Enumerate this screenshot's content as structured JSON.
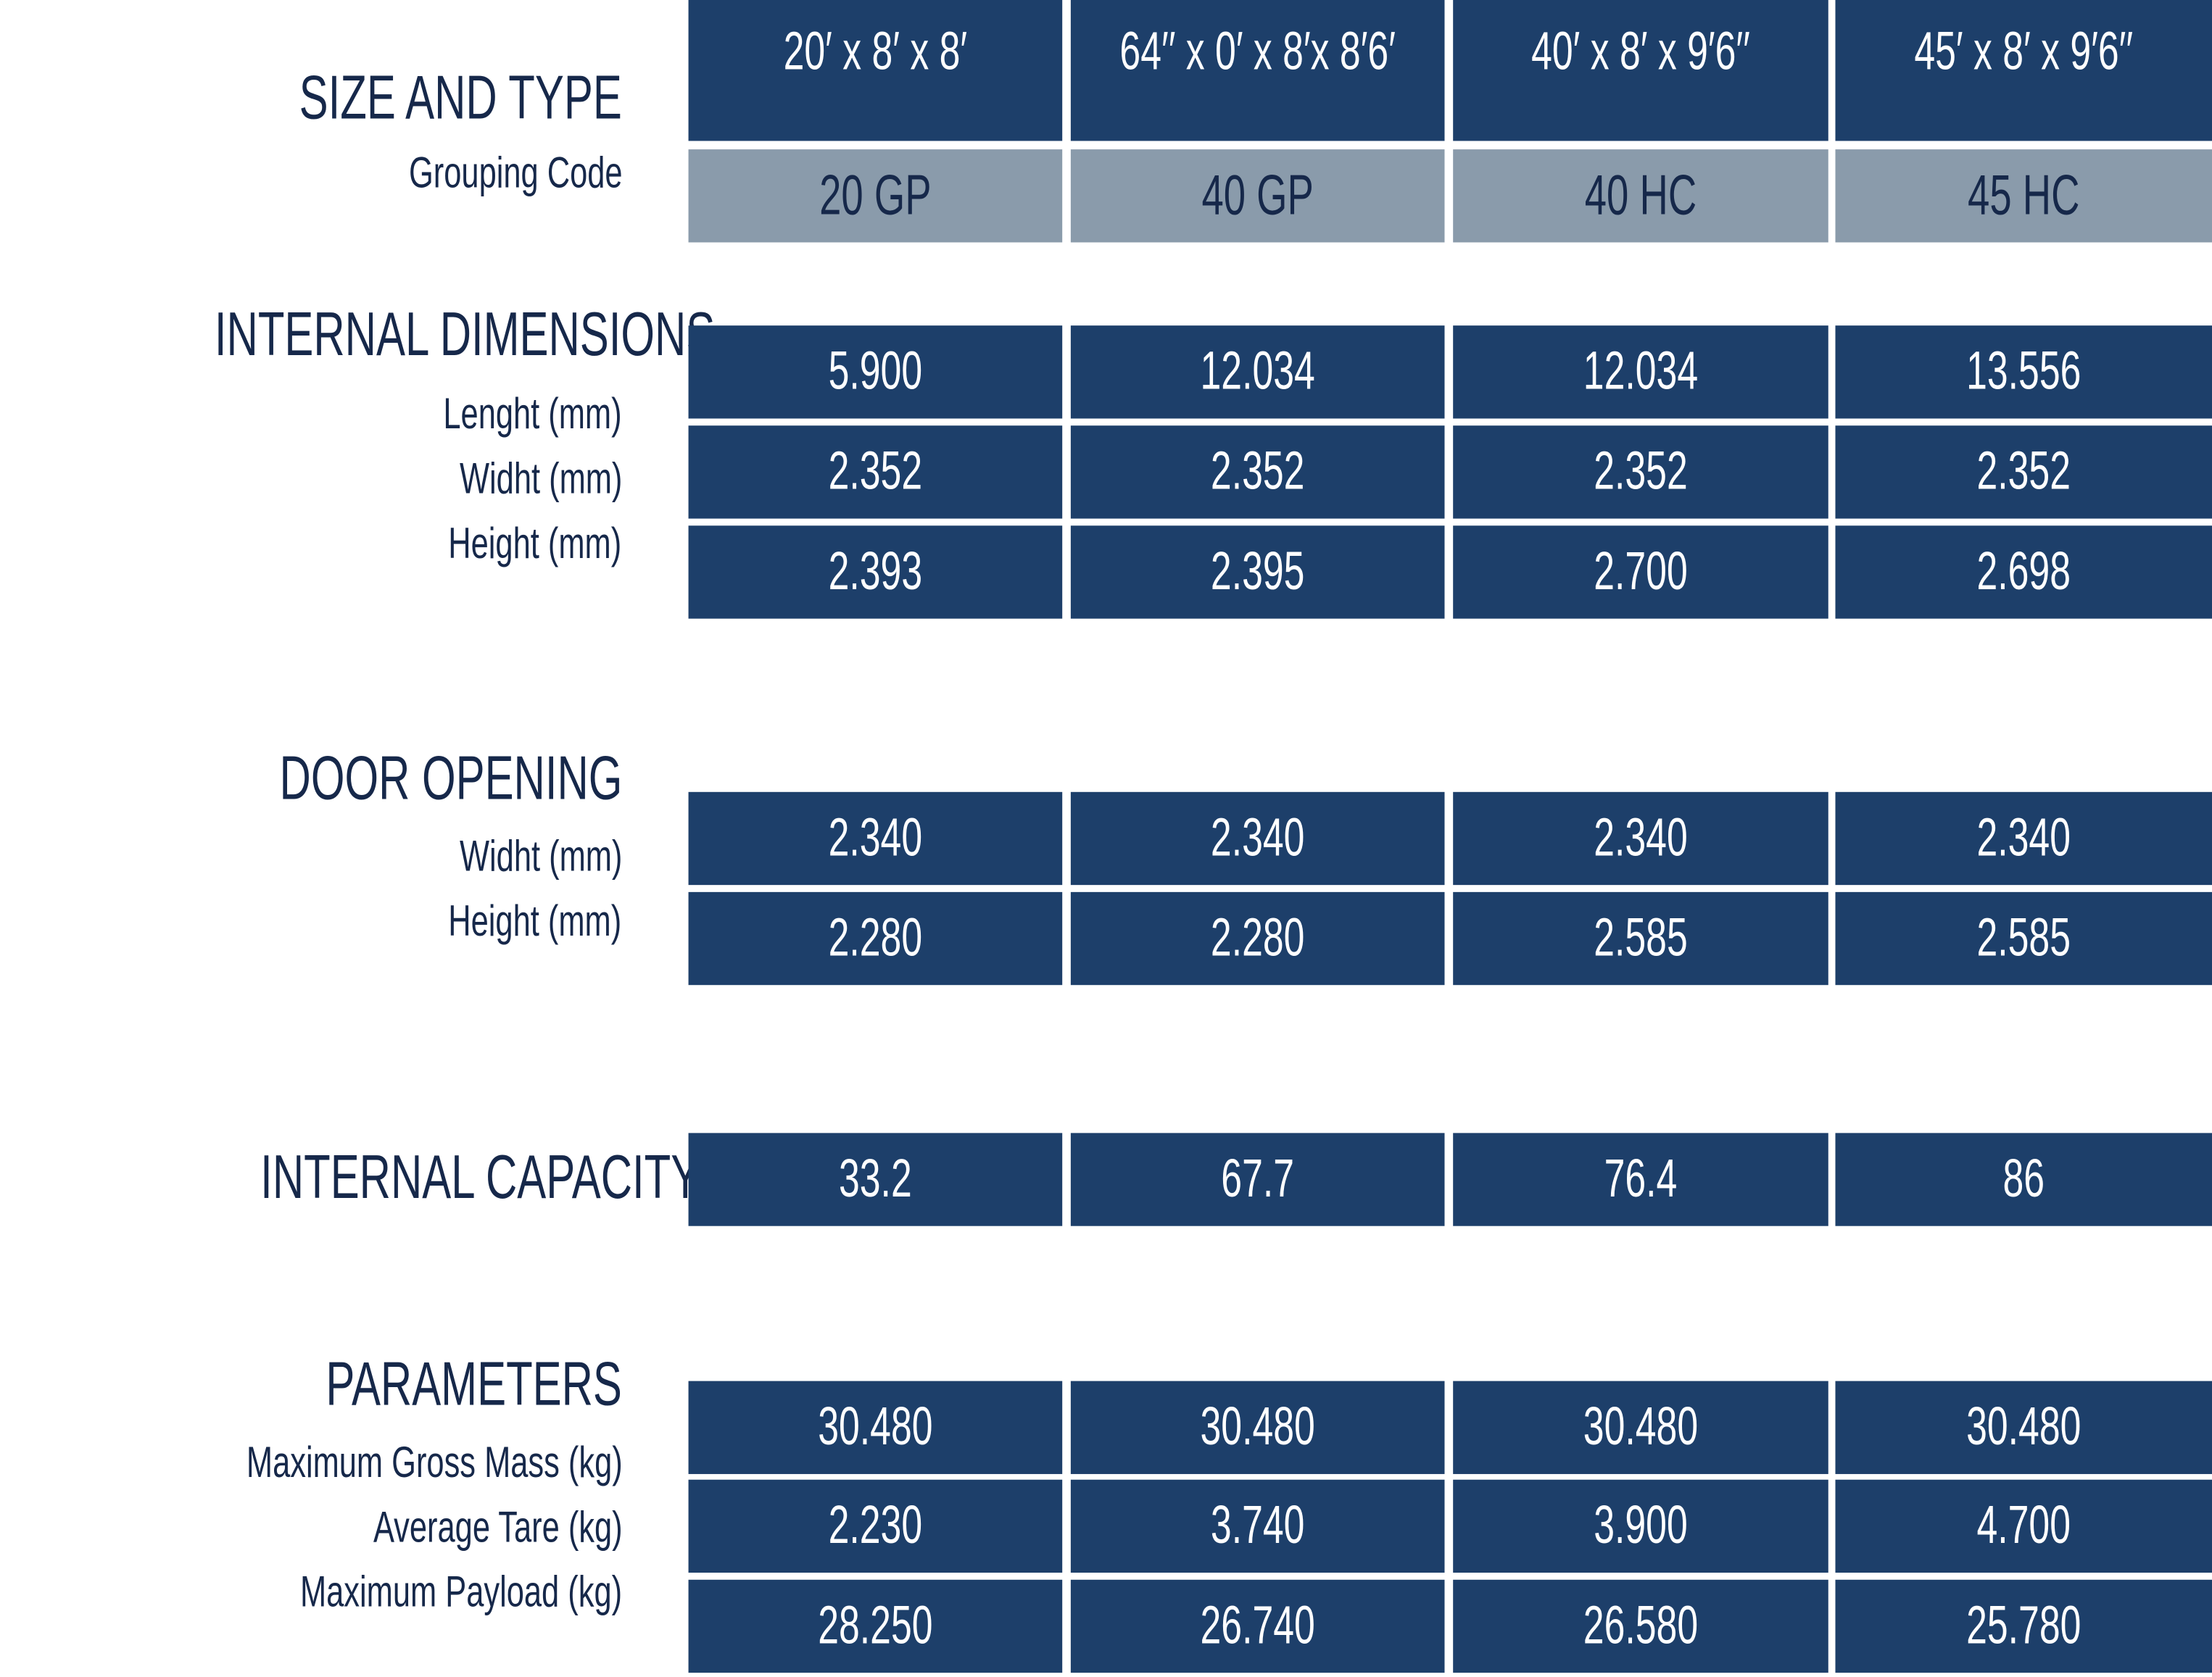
{
  "header": {
    "title": "SIZE AND TYPE",
    "subtitle": "Grouping Code",
    "sizes": [
      "20′ x 8′ x 8′",
      "64′′ x 0′ x 8′x 8′6′",
      "40′ x 8′ x 9′6′′",
      "45′ x 8′ x 9′6′′"
    ],
    "codes": [
      "20 GP",
      "40 GP",
      "40 HC",
      "45 HC"
    ]
  },
  "sections": [
    {
      "title": "INTERNAL DIMENSIONS",
      "labels": [
        "Lenght (mm)",
        "Widht (mm)",
        "Height (mm)"
      ],
      "rows": [
        [
          "5.900",
          "12.034",
          "12.034",
          "13.556"
        ],
        [
          "2.352",
          "2.352",
          "2.352",
          "2.352"
        ],
        [
          "2.393",
          "2.395",
          "2.700",
          "2.698"
        ]
      ]
    },
    {
      "title": "DOOR OPENING",
      "labels": [
        "Widht (mm)",
        "Height (mm)"
      ],
      "rows": [
        [
          "2.340",
          "2.340",
          "2.340",
          "2.340"
        ],
        [
          "2.280",
          "2.280",
          "2.585",
          "2.585"
        ]
      ]
    },
    {
      "title": "INTERNAL CAPACITY (Cub.m)",
      "labels": [],
      "rows": [
        [
          "33.2",
          "67.7",
          "76.4",
          "86"
        ]
      ]
    },
    {
      "title": "PARAMETERS",
      "labels": [
        "Maximum Gross Mass (kg)",
        "Average Tare (kg)",
        "Maximum Payload (kg)"
      ],
      "rows": [
        [
          "30.480",
          "30.480",
          "30.480",
          "30.480"
        ],
        [
          "2.230",
          "3.740",
          "3.900",
          "4.700"
        ],
        [
          "28.250",
          "26.740",
          "26.580",
          "25.780"
        ]
      ]
    }
  ]
}
